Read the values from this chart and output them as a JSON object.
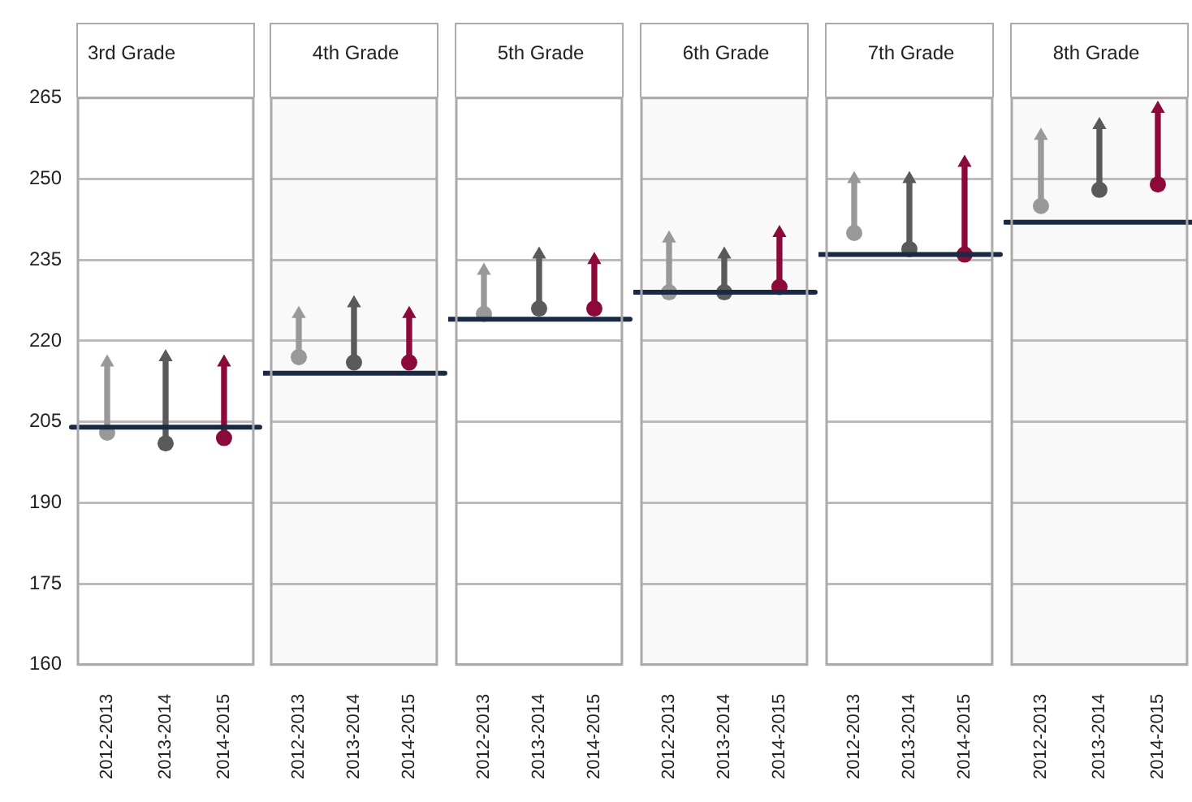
{
  "chart_data": [
    {
      "type": "bar",
      "title": "3rd Grade",
      "categories": [
        "2012-2013",
        "2013-2014",
        "2014-2015"
      ],
      "ylim": [
        160,
        265
      ],
      "yticks": [
        160,
        175,
        190,
        205,
        220,
        235,
        250,
        265
      ],
      "ref_lines": [
        {
          "axis": "y",
          "value": 204,
          "color": "#1b2a44"
        }
      ],
      "grid": "y",
      "series": [
        {
          "type": "bar",
          "base": [
            203,
            201,
            202
          ],
          "values": [
            13,
            16,
            14
          ],
          "colors": [
            "#999999",
            "#5a5a5a",
            "#8b0a3a"
          ]
        },
        {
          "type": "scatter",
          "marker": "circle",
          "x": [
            "2012-2013",
            "2013-2014",
            "2014-2015"
          ],
          "values": [
            203,
            201,
            202
          ],
          "colors": [
            "#999999",
            "#5a5a5a",
            "#8b0a3a"
          ]
        },
        {
          "type": "scatter",
          "marker": "triangle",
          "x": [
            "2012-2013",
            "2013-2014",
            "2014-2015"
          ],
          "values": [
            216,
            217,
            216
          ],
          "colors": [
            "#999999",
            "#5a5a5a",
            "#8b0a3a"
          ]
        }
      ]
    },
    {
      "type": "bar",
      "title": "4th Grade",
      "categories": [
        "2012-2013",
        "2013-2014",
        "2014-2015"
      ],
      "ylim": [
        160,
        265
      ],
      "yticks": [
        160,
        175,
        190,
        205,
        220,
        235,
        250,
        265
      ],
      "ref_lines": [
        {
          "axis": "y",
          "value": 214,
          "color": "#1b2a44"
        }
      ],
      "grid": "y",
      "tick_labels": "x",
      "series": [
        {
          "type": "bar",
          "base": [
            217,
            216,
            216
          ],
          "values": [
            8,
            11,
            9
          ],
          "colors": [
            "#999999",
            "#5a5a5a",
            "#8b0a3a"
          ]
        },
        {
          "type": "scatter",
          "marker": "circle",
          "x": [
            "2012-2013",
            "2013-2014",
            "2014-2015"
          ],
          "values": [
            217,
            216,
            216
          ],
          "colors": [
            "#999999",
            "#5a5a5a",
            "#8b0a3a"
          ]
        },
        {
          "type": "scatter",
          "marker": "triangle",
          "x": [
            "2012-2013",
            "2013-2014",
            "2014-2015"
          ],
          "values": [
            225,
            227,
            225
          ],
          "colors": [
            "#999999",
            "#5a5a5a",
            "#8b0a3a"
          ]
        }
      ]
    },
    {
      "type": "bar",
      "title": "5th Grade",
      "categories": [
        "2012-2013",
        "2013-2014",
        "2014-2015"
      ],
      "ylim": [
        160,
        265
      ],
      "yticks": [
        160,
        175,
        190,
        205,
        220,
        235,
        250,
        265
      ],
      "ref_lines": [
        {
          "axis": "y",
          "value": 224,
          "color": "#1b2a44"
        }
      ],
      "grid": "y",
      "tick_labels": "x",
      "series": [
        {
          "type": "bar",
          "base": [
            225,
            226,
            226
          ],
          "values": [
            8,
            10,
            9
          ],
          "colors": [
            "#999999",
            "#5a5a5a",
            "#8b0a3a"
          ]
        },
        {
          "type": "scatter",
          "marker": "circle",
          "x": [
            "2012-2013",
            "2013-2014",
            "2014-2015"
          ],
          "values": [
            225,
            226,
            226
          ],
          "colors": [
            "#999999",
            "#5a5a5a",
            "#8b0a3a"
          ]
        },
        {
          "type": "scatter",
          "marker": "triangle",
          "x": [
            "2012-2013",
            "2013-2014",
            "2014-2015"
          ],
          "values": [
            233,
            236,
            235
          ],
          "colors": [
            "#999999",
            "#5a5a5a",
            "#8b0a3a"
          ]
        }
      ]
    },
    {
      "type": "bar",
      "title": "6th Grade",
      "categories": [
        "2012-2013",
        "2013-2014",
        "2014-2015"
      ],
      "ylim": [
        160,
        265
      ],
      "yticks": [
        160,
        175,
        190,
        205,
        220,
        235,
        250,
        265
      ],
      "ref_lines": [
        {
          "axis": "y",
          "value": 229,
          "color": "#1b2a44"
        }
      ],
      "grid": "y",
      "tick_labels": "x",
      "series": [
        {
          "type": "bar",
          "base": [
            229,
            229,
            230
          ],
          "values": [
            10,
            7,
            10
          ],
          "colors": [
            "#999999",
            "#5a5a5a",
            "#8b0a3a"
          ]
        },
        {
          "type": "scatter",
          "marker": "circle",
          "x": [
            "2012-2013",
            "2013-2014",
            "2014-2015"
          ],
          "values": [
            229,
            229,
            230
          ],
          "colors": [
            "#999999",
            "#5a5a5a",
            "#8b0a3a"
          ]
        },
        {
          "type": "scatter",
          "marker": "triangle",
          "x": [
            "2012-2013",
            "2013-2014",
            "2014-2015"
          ],
          "values": [
            239,
            236,
            240
          ],
          "colors": [
            "#999999",
            "#5a5a5a",
            "#8b0a3a"
          ]
        }
      ]
    },
    {
      "type": "bar",
      "title": "7th Grade",
      "categories": [
        "2012-2013",
        "2013-2014",
        "2014-2015"
      ],
      "ylim": [
        160,
        265
      ],
      "yticks": [
        160,
        175,
        190,
        205,
        220,
        235,
        250,
        265
      ],
      "ref_lines": [
        {
          "axis": "y",
          "value": 236,
          "color": "#1b2a44"
        }
      ],
      "grid": "y",
      "tick_labels": "x",
      "series": [
        {
          "type": "bar",
          "base": [
            240,
            237,
            236
          ],
          "values": [
            10,
            13,
            17
          ],
          "colors": [
            "#999999",
            "#5a5a5a",
            "#8b0a3a"
          ]
        },
        {
          "type": "scatter",
          "marker": "circle",
          "x": [
            "2012-2013",
            "2013-2014",
            "2014-2015"
          ],
          "values": [
            240,
            237,
            236
          ],
          "colors": [
            "#999999",
            "#5a5a5a",
            "#8b0a3a"
          ]
        },
        {
          "type": "scatter",
          "marker": "triangle",
          "x": [
            "2012-2013",
            "2013-2014",
            "2014-2015"
          ],
          "values": [
            250,
            250,
            253
          ],
          "colors": [
            "#999999",
            "#5a5a5a",
            "#8b0a3a"
          ]
        }
      ]
    },
    {
      "type": "bar",
      "title": "8th Grade",
      "categories": [
        "2012-2013",
        "2013-2014",
        "2014-2015"
      ],
      "ylim": [
        160,
        265
      ],
      "yticks": [
        160,
        175,
        190,
        205,
        220,
        235,
        250,
        265
      ],
      "ref_lines": [
        {
          "axis": "y",
          "value": 242,
          "color": "#1b2a44"
        }
      ],
      "grid": "y",
      "tick_labels": "x",
      "series": [
        {
          "type": "bar",
          "base": [
            245,
            248,
            249
          ],
          "values": [
            13,
            12,
            14
          ],
          "colors": [
            "#999999",
            "#5a5a5a",
            "#8b0a3a"
          ]
        },
        {
          "type": "scatter",
          "marker": "circle",
          "x": [
            "2012-2013",
            "2013-2014",
            "2014-2015"
          ],
          "values": [
            245,
            248,
            249
          ],
          "colors": [
            "#999999",
            "#5a5a5a",
            "#8b0a3a"
          ]
        },
        {
          "type": "scatter",
          "marker": "triangle",
          "x": [
            "2012-2013",
            "2013-2014",
            "2014-2015"
          ],
          "values": [
            258,
            260,
            263
          ],
          "colors": [
            "#999999",
            "#5a5a5a",
            "#8b0a3a"
          ]
        }
      ]
    }
  ]
}
